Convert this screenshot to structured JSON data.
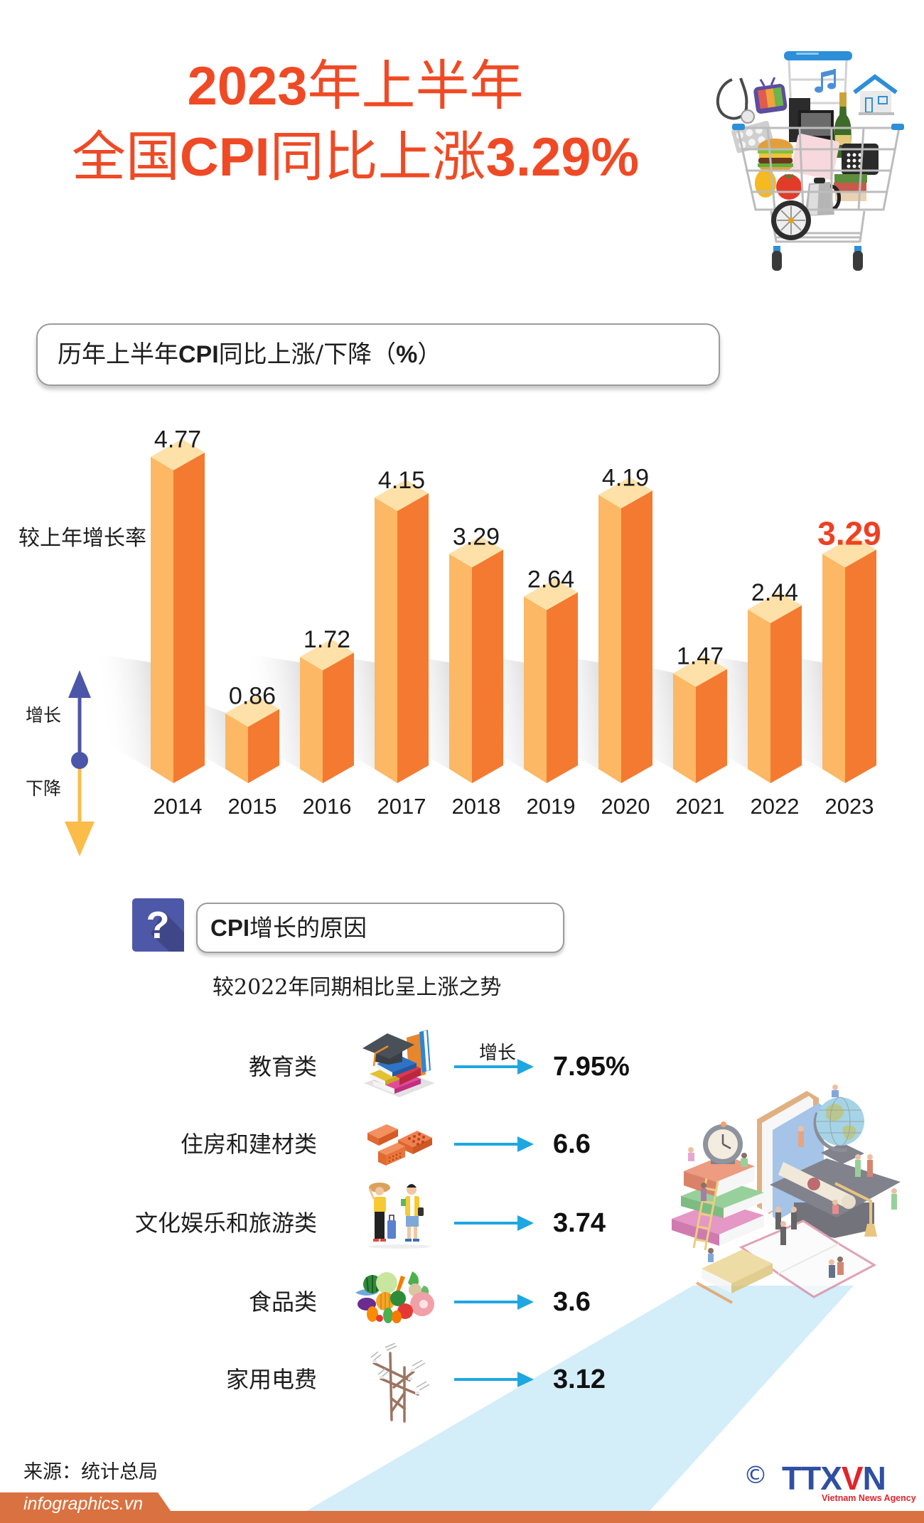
{
  "title": {
    "line1": {
      "number": "2023",
      "text": "年上半年"
    },
    "line2": {
      "prefix": "全国",
      "acronym": "CPI",
      "middle": "同比上涨",
      "value": "3.29%"
    }
  },
  "chart_header": {
    "part1": "历年上半年",
    "acronym": "CPI",
    "part2": "同比上涨/下降（",
    "unit": "%",
    "part3": "）"
  },
  "chart_data": {
    "type": "bar",
    "style": "3d-isometric",
    "title": "历年上半年CPI同比上涨/下降（%）",
    "xlabel": "",
    "ylabel": "较上年增长率",
    "categories": [
      "2014",
      "2015",
      "2016",
      "2017",
      "2018",
      "2019",
      "2020",
      "2021",
      "2022",
      "2023"
    ],
    "values": [
      4.77,
      0.86,
      1.72,
      4.15,
      3.29,
      2.64,
      4.19,
      1.47,
      2.44,
      3.29
    ],
    "ylim": [
      0,
      5
    ],
    "grid": false,
    "highlight": {
      "category": "2023",
      "color": "#EE4023"
    },
    "legend": [
      {
        "label": "增长",
        "direction": "up",
        "color": "#4C56A8"
      },
      {
        "label": "下降",
        "direction": "down",
        "color": "#FBBC4A"
      }
    ],
    "legend_position": "left",
    "bar_colors": {
      "top": "#FEE1A9",
      "left": "#FCB864",
      "right": "#F37A30"
    }
  },
  "reasons": {
    "icon_glyph": "?",
    "heading_acronym": "CPI",
    "heading_text": "增长的原因",
    "subtitle": "较2022年同期相比呈上涨之势",
    "arrow_label": "增长",
    "items": [
      {
        "label": "教育类",
        "value": "7.95%",
        "icon": "education-icon"
      },
      {
        "label": "住房和建材类",
        "value": "6.6",
        "icon": "bricks-icon"
      },
      {
        "label": "文化娱乐和旅游类",
        "value": "3.74",
        "icon": "travel-icon"
      },
      {
        "label": "食品类",
        "value": "3.6",
        "icon": "food-icon"
      },
      {
        "label": "家用电费",
        "value": "3.12",
        "icon": "power-pylon-icon"
      }
    ]
  },
  "footer": {
    "source": "来源：统计总局",
    "site": "infographics.vn",
    "copyright": "©",
    "logo": {
      "part1": "TTX",
      "part2": "V",
      "part3": "N"
    },
    "tagline": "Vietnam News Agency"
  },
  "colors": {
    "title": "#EF4A25",
    "accent_indigo": "#4E58A8",
    "arrow": "#1EA7E1",
    "footer": "#DA7140",
    "beam": "#D3EDF9",
    "logo_blue": "#2F4FA2",
    "logo_red": "#E3232C"
  }
}
